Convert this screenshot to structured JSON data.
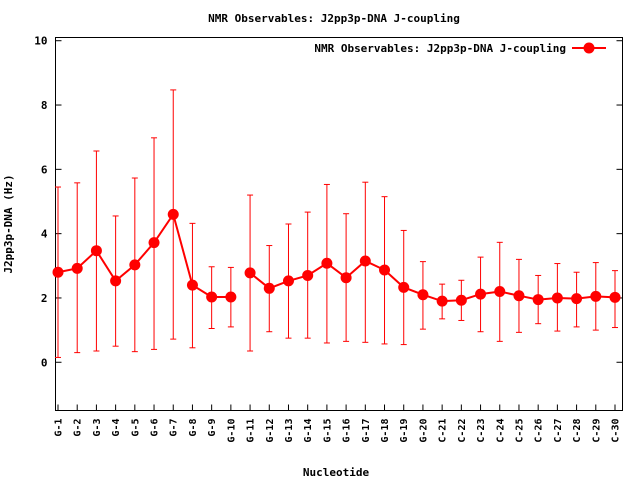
{
  "chart_data": {
    "type": "line",
    "title": "NMR Observables: J2pp3p-DNA J-coupling",
    "xlabel": "Nucleotide",
    "ylabel": "J2pp3p-DNA (Hz)",
    "ylim": [
      -1.5,
      10.1
    ],
    "yticks": [
      "0",
      "2",
      "4",
      "6",
      "8",
      "10"
    ],
    "legend_position": "top-right",
    "grid": false,
    "categories": [
      "G-1",
      "G-2",
      "G-3",
      "G-4",
      "G-5",
      "G-6",
      "G-7",
      "G-8",
      "G-9",
      "G-10",
      "G-11",
      "G-12",
      "G-13",
      "G-14",
      "G-15",
      "G-16",
      "G-17",
      "G-18",
      "G-19",
      "G-20",
      "C-21",
      "C-22",
      "C-23",
      "C-24",
      "C-25",
      "C-26",
      "C-27",
      "C-28",
      "C-29",
      "C-30"
    ],
    "series": [
      {
        "name": "NMR Observables: J2pp3p-DNA J-coupling",
        "color": "#ff0000",
        "segments": [
          [
            0,
            9
          ],
          [
            10,
            29
          ]
        ],
        "values": [
          2.8,
          2.92,
          3.47,
          2.53,
          3.03,
          3.72,
          4.6,
          2.4,
          2.03,
          2.03,
          2.78,
          2.3,
          2.53,
          2.7,
          3.08,
          2.63,
          3.15,
          2.87,
          2.33,
          2.1,
          1.9,
          1.93,
          2.12,
          2.2,
          2.07,
          1.95,
          2.0,
          1.98,
          2.05,
          2.02
        ],
        "error_low": [
          0.15,
          0.3,
          0.35,
          0.5,
          0.33,
          0.4,
          0.72,
          0.45,
          1.05,
          1.1,
          0.35,
          0.95,
          0.75,
          0.75,
          0.6,
          0.65,
          0.62,
          0.57,
          0.55,
          1.03,
          1.35,
          1.3,
          0.95,
          0.65,
          0.93,
          1.2,
          0.97,
          1.1,
          1.0,
          1.08
        ],
        "error_high": [
          5.45,
          5.58,
          6.57,
          4.55,
          5.73,
          6.98,
          8.47,
          4.32,
          2.97,
          2.95,
          5.2,
          3.63,
          4.3,
          4.67,
          5.53,
          4.62,
          5.6,
          5.15,
          4.1,
          3.13,
          2.43,
          2.55,
          3.27,
          3.73,
          3.2,
          2.7,
          3.07,
          2.8,
          3.1,
          2.85
        ]
      }
    ]
  }
}
